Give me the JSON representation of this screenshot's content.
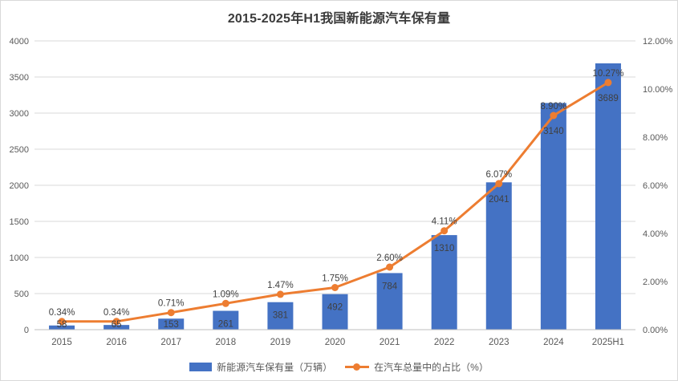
{
  "chart_data": {
    "type": "combo",
    "title": "2015-2025年H1我国新能源汽车保有量",
    "categories": [
      "2015",
      "2016",
      "2017",
      "2018",
      "2019",
      "2020",
      "2021",
      "2022",
      "2023",
      "2024",
      "2025H1"
    ],
    "series": [
      {
        "name": "新能源汽车保有量（万辆）",
        "type": "bar",
        "axis": "left",
        "color": "#4472C4",
        "values": [
          58,
          65,
          153,
          261,
          381,
          492,
          784,
          1310,
          2041,
          3140,
          3689
        ]
      },
      {
        "name": "在汽车总量中的占比（%）",
        "type": "line",
        "axis": "right",
        "color": "#ED7D31",
        "values": [
          0.34,
          0.34,
          0.71,
          1.09,
          1.47,
          1.75,
          2.6,
          4.11,
          6.07,
          8.9,
          10.27
        ]
      }
    ],
    "bar_labels": [
      "58",
      "65",
      "153",
      "261",
      "381",
      "492",
      "784",
      "1310",
      "2041",
      "3140",
      "3689"
    ],
    "line_labels": [
      "0.34%",
      "0.34%",
      "0.71%",
      "1.09%",
      "1.47%",
      "1.75%",
      "2.60%",
      "4.11%",
      "6.07%",
      "8.90%",
      "10.27%"
    ],
    "left_axis": {
      "min": 0,
      "max": 4000,
      "step": 500,
      "tick_labels": [
        "0",
        "500",
        "1000",
        "1500",
        "2000",
        "2500",
        "3000",
        "3500",
        "4000"
      ]
    },
    "right_axis": {
      "min": 0,
      "max": 12,
      "step": 2,
      "tick_labels": [
        "0.00%",
        "2.00%",
        "4.00%",
        "6.00%",
        "8.00%",
        "10.00%",
        "12.00%"
      ]
    },
    "grid": true,
    "legend_position": "bottom",
    "colors": {
      "bar": "#4472C4",
      "line": "#ED7D31",
      "gridline": "#D9D9D9",
      "axis_line": "#BFBFBF",
      "tick_text": "#595959",
      "data_label_text": "#404040",
      "title_text": "#3B3B3B"
    }
  }
}
